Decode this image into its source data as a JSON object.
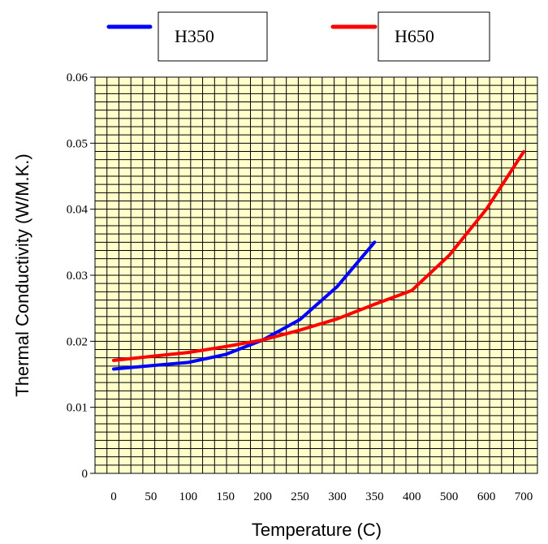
{
  "chart_data": {
    "type": "line",
    "title": "",
    "xlabel": "Temperature (C)",
    "ylabel": "Thermal Conductivity (W/M.K.)",
    "x_categories": [
      "0",
      "50",
      "100",
      "150",
      "200",
      "250",
      "300",
      "350",
      "400",
      "500",
      "600",
      "700"
    ],
    "ylim": [
      0,
      0.06
    ],
    "y_ticks": [
      "0",
      "0.01",
      "0.02",
      "0.03",
      "0.04",
      "0.05",
      "0.06"
    ],
    "grid": true,
    "legend_position": "top",
    "series": [
      {
        "name": "H350",
        "color": "#0000ff",
        "x": [
          "0",
          "50",
          "100",
          "150",
          "200",
          "250",
          "300",
          "350"
        ],
        "values": [
          0.0158,
          0.0163,
          0.0168,
          0.018,
          0.0202,
          0.0233,
          0.0283,
          0.035
        ]
      },
      {
        "name": "H650",
        "color": "#ff0000",
        "x": [
          "0",
          "50",
          "100",
          "150",
          "200",
          "250",
          "300",
          "350",
          "400",
          "500",
          "600",
          "700"
        ],
        "values": [
          0.0171,
          0.0177,
          0.0183,
          0.0192,
          0.0202,
          0.0217,
          0.0234,
          0.0256,
          0.0277,
          0.033,
          0.04,
          0.0487
        ]
      }
    ],
    "plot_background": "#ffffcc"
  }
}
